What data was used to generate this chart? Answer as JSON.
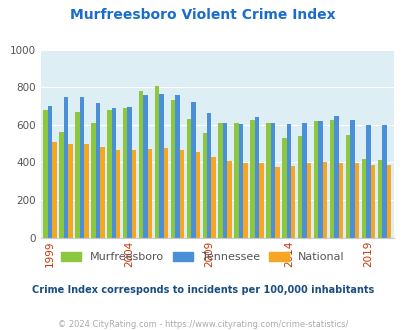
{
  "title": "Murfreesboro Violent Crime Index",
  "years": [
    1999,
    2000,
    2001,
    2002,
    2003,
    2004,
    2005,
    2006,
    2007,
    2008,
    2009,
    2010,
    2011,
    2012,
    2013,
    2014,
    2015,
    2016,
    2017,
    2018,
    2019,
    2020
  ],
  "murfreesboro": [
    680,
    560,
    670,
    610,
    680,
    690,
    780,
    805,
    730,
    630,
    555,
    610,
    610,
    625,
    610,
    530,
    540,
    620,
    625,
    545,
    420,
    415
  ],
  "tennessee": [
    700,
    750,
    750,
    715,
    690,
    695,
    760,
    765,
    760,
    720,
    665,
    610,
    605,
    640,
    610,
    605,
    610,
    620,
    645,
    625,
    600,
    600
  ],
  "national": [
    510,
    500,
    500,
    480,
    465,
    465,
    470,
    475,
    465,
    455,
    430,
    405,
    395,
    395,
    375,
    380,
    395,
    400,
    395,
    395,
    385,
    385
  ],
  "colors": {
    "murfreesboro": "#8dc63f",
    "tennessee": "#4a90d9",
    "national": "#f5a623"
  },
  "ylim": [
    0,
    1000
  ],
  "yticks": [
    0,
    200,
    400,
    600,
    800,
    1000
  ],
  "xtick_years": [
    1999,
    2004,
    2009,
    2014,
    2019
  ],
  "background_color": "#ddeef5",
  "subtitle": "Crime Index corresponds to incidents per 100,000 inhabitants",
  "footer": "© 2024 CityRating.com - https://www.cityrating.com/crime-statistics/",
  "title_color": "#1a6dcc",
  "subtitle_color": "#1a4d80",
  "footer_color": "#aaaaaa",
  "bar_width": 0.28
}
